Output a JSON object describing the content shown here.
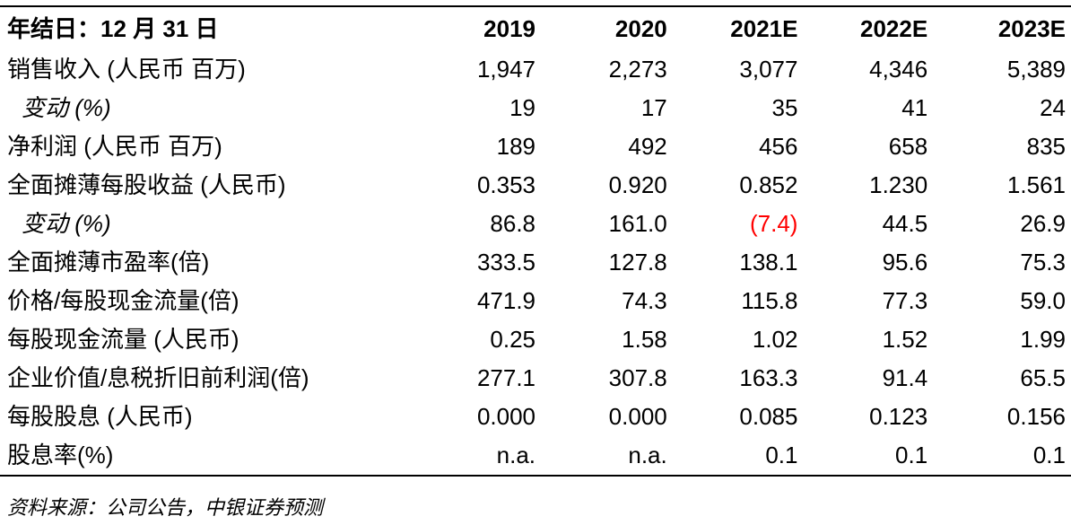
{
  "table": {
    "header": [
      "年结日：12 月 31 日",
      "2019",
      "2020",
      "2021E",
      "2022E",
      "2023E"
    ],
    "rows": [
      {
        "label": "销售收入 (人民币 百万)",
        "italic": false,
        "values": [
          "1,947",
          "2,273",
          "3,077",
          "4,346",
          "5,389"
        ]
      },
      {
        "label": "变动 (%)",
        "italic": true,
        "values": [
          "19",
          "17",
          "35",
          "41",
          "24"
        ]
      },
      {
        "label": "净利润 (人民币 百万)",
        "italic": false,
        "values": [
          "189",
          "492",
          "456",
          "658",
          "835"
        ]
      },
      {
        "label": "全面摊薄每股收益 (人民币)",
        "italic": false,
        "values": [
          "0.353",
          "0.920",
          "0.852",
          "1.230",
          "1.561"
        ]
      },
      {
        "label": "变动 (%)",
        "italic": true,
        "values": [
          "86.8",
          "161.0",
          "(7.4)",
          "44.5",
          "26.9"
        ]
      },
      {
        "label": "全面摊薄市盈率(倍)",
        "italic": false,
        "values": [
          "333.5",
          "127.8",
          "138.1",
          "95.6",
          "75.3"
        ]
      },
      {
        "label": "价格/每股现金流量(倍)",
        "italic": false,
        "values": [
          "471.9",
          "74.3",
          "115.8",
          "77.3",
          "59.0"
        ]
      },
      {
        "label": "每股现金流量 (人民币)",
        "italic": false,
        "values": [
          "0.25",
          "1.58",
          "1.02",
          "1.52",
          "1.99"
        ]
      },
      {
        "label": "企业价值/息税折旧前利润(倍)",
        "italic": false,
        "values": [
          "277.1",
          "307.8",
          "163.3",
          "91.4",
          "65.5"
        ]
      },
      {
        "label": "每股股息 (人民币)",
        "italic": false,
        "values": [
          "0.000",
          "0.000",
          "0.085",
          "0.123",
          "0.156"
        ]
      },
      {
        "label": "股息率(%)",
        "italic": false,
        "values": [
          "n.a.",
          "n.a.",
          "0.1",
          "0.1",
          "0.1"
        ]
      }
    ]
  },
  "source": "资料来源：公司公告，中银证券预测",
  "colors": {
    "negative": "#ff0000"
  }
}
